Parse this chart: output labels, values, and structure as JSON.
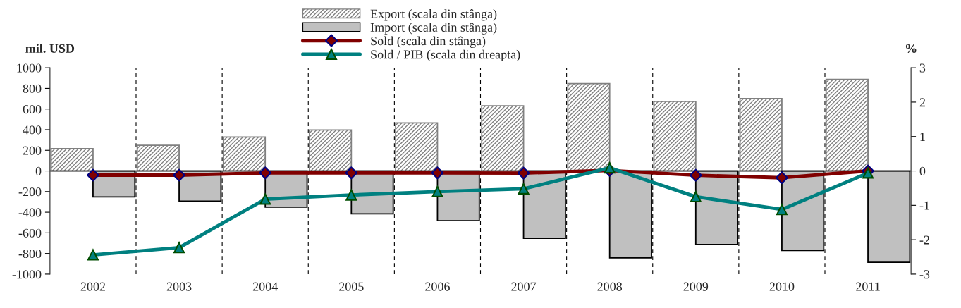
{
  "chart_data": {
    "type": "bar",
    "categories": [
      "2002",
      "2003",
      "2004",
      "2005",
      "2006",
      "2007",
      "2008",
      "2009",
      "2010",
      "2011"
    ],
    "series": [
      {
        "name": "Export (scala din stânga)",
        "color": "#808080",
        "values": [
          216,
          249,
          329,
          397,
          466,
          631,
          846,
          674,
          701,
          888
        ]
      },
      {
        "name": "Import (scala din stânga)",
        "color": "#c0c0c0",
        "values": [
          -252,
          -293,
          -351,
          -416,
          -482,
          -653,
          -843,
          -713,
          -770,
          -885
        ]
      },
      {
        "name": "Sold (scala din stânga)",
        "type": "line",
        "color": "#800000",
        "marker": "diamond",
        "values": [
          -41,
          -41,
          -19,
          -19,
          -19,
          -21,
          5,
          -42,
          -66,
          0
        ]
      },
      {
        "name": "Sold / PIB (scala din dreapta)",
        "type": "line",
        "axis": "y2",
        "color": "#008080",
        "marker": "triangle",
        "values": [
          -2.44,
          -2.23,
          -0.82,
          -0.7,
          -0.6,
          -0.52,
          0.09,
          -0.75,
          -1.12,
          -0.06
        ]
      }
    ],
    "ylabel": "mil. USD",
    "y2label": "%",
    "ylim": [
      -1000,
      1000
    ],
    "yticks": [
      -1000,
      -800,
      -600,
      -400,
      -200,
      0,
      200,
      400,
      600,
      800,
      1000
    ],
    "y2lim": [
      -3,
      3
    ],
    "y2ticks": [
      -3,
      -2,
      -1,
      0,
      1,
      2,
      3
    ],
    "grid": "x",
    "legend": "top"
  }
}
